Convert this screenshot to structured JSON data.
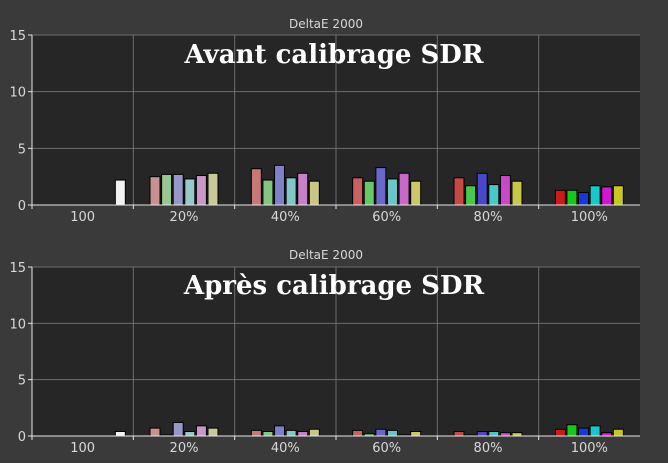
{
  "chart_data": [
    {
      "type": "bar",
      "title": "DeltaE 2000",
      "annotation": "Avant calibrage SDR",
      "ylim": [
        0,
        15
      ],
      "yticks": [
        0,
        5,
        10,
        15
      ],
      "categories": [
        "100",
        "20%",
        "40%",
        "60%",
        "80%",
        "100%"
      ],
      "grid": true,
      "groups": [
        {
          "bars": [
            {
              "color": "#f2f2f2",
              "value": 2.2
            }
          ]
        },
        {
          "bars": [
            {
              "color": "#c89090",
              "value": 2.5
            },
            {
              "color": "#98c890",
              "value": 2.7
            },
            {
              "color": "#9898c8",
              "value": 2.7
            },
            {
              "color": "#98c8c8",
              "value": 2.3
            },
            {
              "color": "#c898c8",
              "value": 2.6
            },
            {
              "color": "#c8c898",
              "value": 2.8
            }
          ]
        },
        {
          "bars": [
            {
              "color": "#c87878",
              "value": 3.2
            },
            {
              "color": "#80c880",
              "value": 2.2
            },
            {
              "color": "#8080c8",
              "value": 3.5
            },
            {
              "color": "#80c8c8",
              "value": 2.4
            },
            {
              "color": "#c880c8",
              "value": 2.8
            },
            {
              "color": "#c8c880",
              "value": 2.1
            }
          ]
        },
        {
          "bars": [
            {
              "color": "#c86060",
              "value": 2.4
            },
            {
              "color": "#68c868",
              "value": 2.1
            },
            {
              "color": "#6868c8",
              "value": 3.3
            },
            {
              "color": "#68c8c8",
              "value": 2.3
            },
            {
              "color": "#c868c8",
              "value": 2.8
            },
            {
              "color": "#c8c868",
              "value": 2.1
            }
          ]
        },
        {
          "bars": [
            {
              "color": "#c84848",
              "value": 2.4
            },
            {
              "color": "#48c848",
              "value": 1.7
            },
            {
              "color": "#4848c8",
              "value": 2.8
            },
            {
              "color": "#48c8c8",
              "value": 1.8
            },
            {
              "color": "#c848c8",
              "value": 2.6
            },
            {
              "color": "#c8c848",
              "value": 2.1
            }
          ]
        },
        {
          "bars": [
            {
              "color": "#d01818",
              "value": 1.3
            },
            {
              "color": "#18c818",
              "value": 1.3
            },
            {
              "color": "#1838d8",
              "value": 1.1
            },
            {
              "color": "#18c8c8",
              "value": 1.7
            },
            {
              "color": "#d018d0",
              "value": 1.6
            },
            {
              "color": "#c8c818",
              "value": 1.7
            }
          ]
        }
      ]
    },
    {
      "type": "bar",
      "title": "DeltaE 2000",
      "annotation": "Après calibrage SDR",
      "ylim": [
        0,
        15
      ],
      "yticks": [
        0,
        5,
        10,
        15
      ],
      "categories": [
        "100",
        "20%",
        "40%",
        "60%",
        "80%",
        "100%"
      ],
      "grid": true,
      "groups": [
        {
          "bars": [
            {
              "color": "#f2f2f2",
              "value": 0.4
            }
          ]
        },
        {
          "bars": [
            {
              "color": "#c89090",
              "value": 0.7
            },
            {
              "color": "#98c890",
              "value": 0.1
            },
            {
              "color": "#9898c8",
              "value": 1.2
            },
            {
              "color": "#98c8c8",
              "value": 0.4
            },
            {
              "color": "#c898c8",
              "value": 0.9
            },
            {
              "color": "#c8c898",
              "value": 0.7
            }
          ]
        },
        {
          "bars": [
            {
              "color": "#c87878",
              "value": 0.5
            },
            {
              "color": "#80c880",
              "value": 0.4
            },
            {
              "color": "#8080c8",
              "value": 0.9
            },
            {
              "color": "#80c8c8",
              "value": 0.5
            },
            {
              "color": "#c880c8",
              "value": 0.4
            },
            {
              "color": "#c8c880",
              "value": 0.6
            }
          ]
        },
        {
          "bars": [
            {
              "color": "#c86060",
              "value": 0.5
            },
            {
              "color": "#68c868",
              "value": 0.2
            },
            {
              "color": "#6868c8",
              "value": 0.6
            },
            {
              "color": "#68c8c8",
              "value": 0.5
            },
            {
              "color": "#c868c8",
              "value": 0.1
            },
            {
              "color": "#c8c868",
              "value": 0.4
            }
          ]
        },
        {
          "bars": [
            {
              "color": "#c84848",
              "value": 0.4
            },
            {
              "color": "#48c848",
              "value": 0.1
            },
            {
              "color": "#4848c8",
              "value": 0.4
            },
            {
              "color": "#48c8c8",
              "value": 0.4
            },
            {
              "color": "#c848c8",
              "value": 0.3
            },
            {
              "color": "#c8c848",
              "value": 0.3
            }
          ]
        },
        {
          "bars": [
            {
              "color": "#d01818",
              "value": 0.6
            },
            {
              "color": "#18c818",
              "value": 1.0
            },
            {
              "color": "#1838d8",
              "value": 0.7
            },
            {
              "color": "#18c8c8",
              "value": 0.9
            },
            {
              "color": "#d018d0",
              "value": 0.3
            },
            {
              "color": "#c8c818",
              "value": 0.6
            }
          ]
        }
      ]
    }
  ]
}
